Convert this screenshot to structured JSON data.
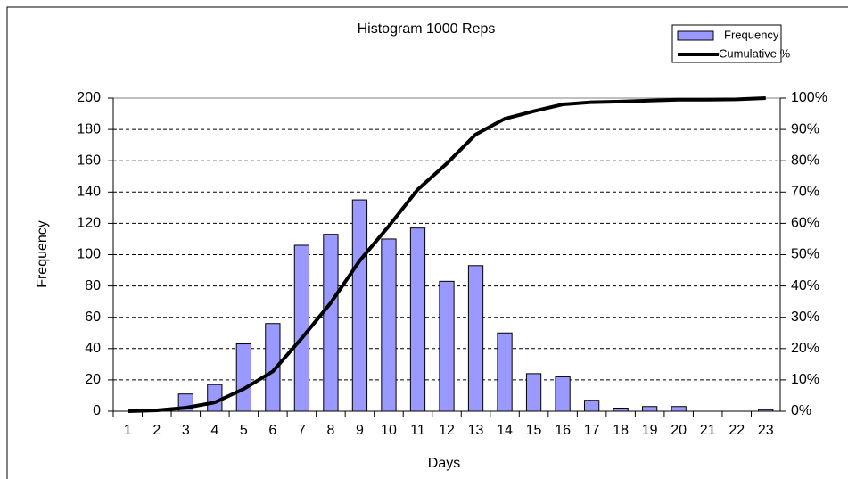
{
  "chart_data": {
    "type": "bar",
    "title": "Histogram 1000 Reps",
    "xlabel": "Days",
    "ylabel": "Frequency",
    "categories": [
      "1",
      "2",
      "3",
      "4",
      "5",
      "6",
      "7",
      "8",
      "9",
      "10",
      "11",
      "12",
      "13",
      "14",
      "15",
      "16",
      "17",
      "18",
      "19",
      "20",
      "21",
      "22",
      "23"
    ],
    "series": [
      {
        "name": "Frequency",
        "color": "#9999ff",
        "type": "bar",
        "values": [
          0,
          0,
          11,
          17,
          43,
          56,
          106,
          113,
          135,
          110,
          117,
          83,
          93,
          50,
          24,
          22,
          7,
          2,
          3,
          3,
          0,
          0,
          1
        ]
      },
      {
        "name": "Cumulative %",
        "color": "#000000",
        "type": "line",
        "axis": "y2",
        "values": [
          0,
          0.3,
          1.1,
          2.8,
          7.1,
          12.7,
          23.3,
          34.6,
          48.1,
          59.1,
          70.8,
          79.1,
          88.4,
          93.4,
          95.8,
          98,
          98.7,
          98.9,
          99.2,
          99.5,
          99.5,
          99.6,
          100
        ]
      }
    ],
    "ylim": [
      0,
      200
    ],
    "yticks": [
      0,
      20,
      40,
      60,
      80,
      100,
      120,
      140,
      160,
      180,
      200
    ],
    "y2lim": [
      0,
      100
    ],
    "y2ticks": [
      {
        "value": 0,
        "label": "0%"
      },
      {
        "value": 10,
        "label": "10%"
      },
      {
        "value": 20,
        "label": "20%"
      },
      {
        "value": 30,
        "label": "30%"
      },
      {
        "value": 40,
        "label": "40%"
      },
      {
        "value": 50,
        "label": "50%"
      },
      {
        "value": 60,
        "label": "60%"
      },
      {
        "value": 70,
        "label": "70%"
      },
      {
        "value": 80,
        "label": "80%"
      },
      {
        "value": 90,
        "label": "90%"
      },
      {
        "value": 100,
        "label": "100%"
      }
    ],
    "grid": true,
    "legend": "upper right"
  }
}
